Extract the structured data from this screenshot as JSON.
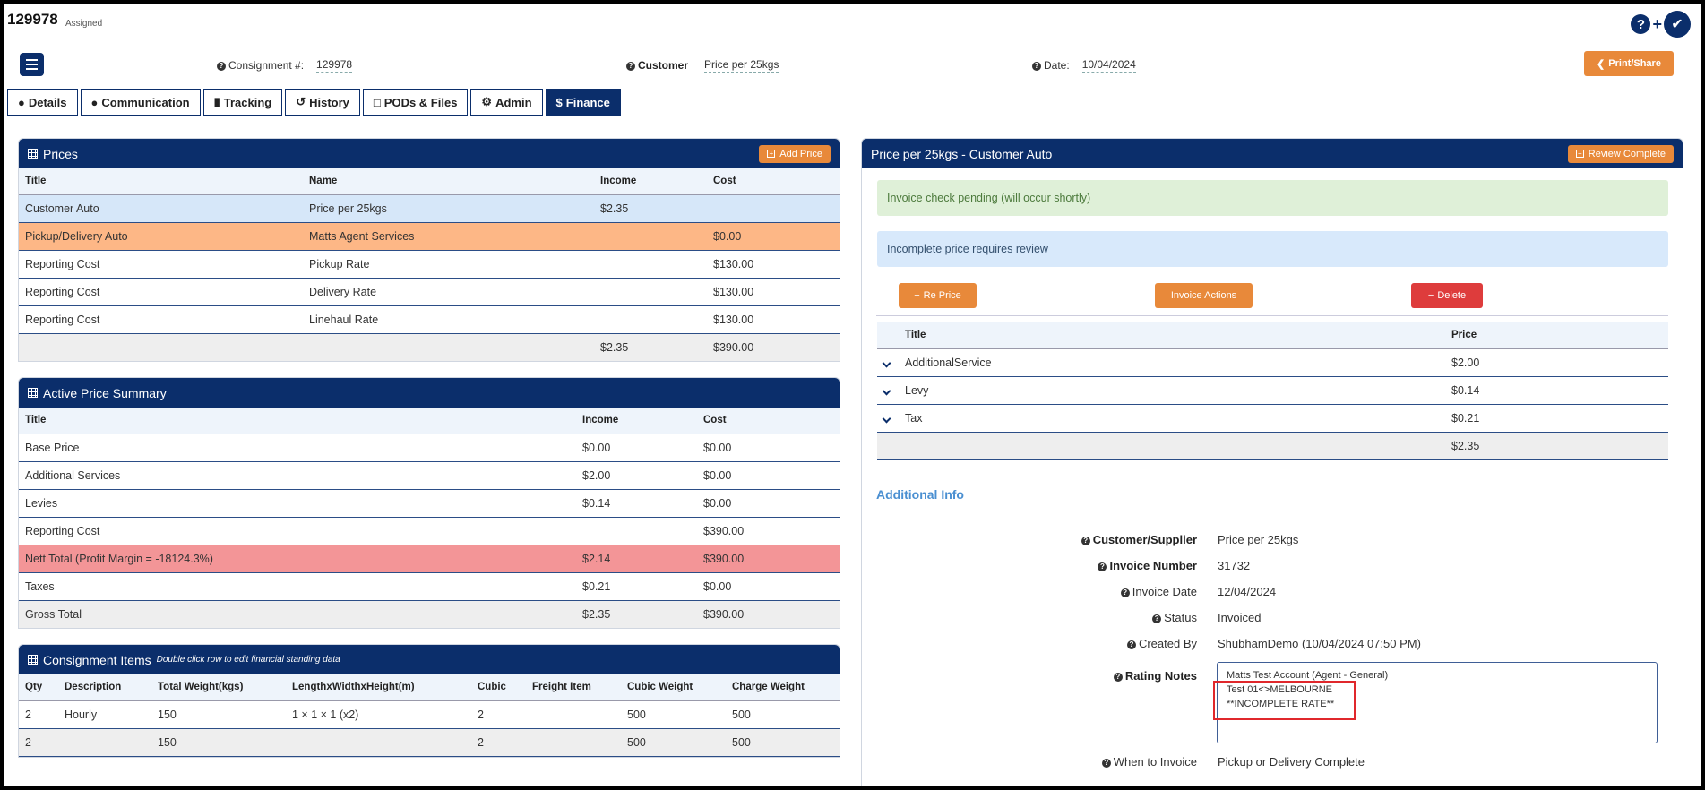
{
  "header": {
    "consignment_id": "129978",
    "status": "Assigned",
    "consignment_label": "Consignment #:",
    "consignment_value": "129978",
    "customer_label": "Customer",
    "customer_value": "Price per 25kgs",
    "date_label": "Date:",
    "date_value": "10/04/2024",
    "print_label": "Print/Share"
  },
  "tabs": [
    {
      "label": "Details",
      "icon": "user-icon"
    },
    {
      "label": "Communication",
      "icon": "comment-icon"
    },
    {
      "label": "Tracking",
      "icon": "truck-icon"
    },
    {
      "label": "History",
      "icon": "history-icon"
    },
    {
      "label": "PODs & Files",
      "icon": "file-icon"
    },
    {
      "label": "Admin",
      "icon": "gear-icon"
    },
    {
      "label": "Finance",
      "icon": "dollar-icon",
      "active": true
    }
  ],
  "prices": {
    "title": "Prices",
    "add_label": "Add Price",
    "columns": [
      "Title",
      "Name",
      "Income",
      "Cost"
    ],
    "rows": [
      [
        "Customer Auto",
        "Price per 25kgs",
        "$2.35",
        ""
      ],
      [
        "Pickup/Delivery Auto",
        "Matts Agent Services",
        "",
        "$0.00"
      ],
      [
        "Reporting Cost",
        "Pickup Rate",
        "",
        "$130.00"
      ],
      [
        "Reporting Cost",
        "Delivery Rate",
        "",
        "$130.00"
      ],
      [
        "Reporting Cost",
        "Linehaul Rate",
        "",
        "$130.00"
      ]
    ],
    "total": [
      "",
      "",
      "$2.35",
      "$390.00"
    ]
  },
  "summary": {
    "title": "Active Price Summary",
    "columns": [
      "Title",
      "Income",
      "Cost"
    ],
    "rows": [
      [
        "Base Price",
        "$0.00",
        "$0.00"
      ],
      [
        "Additional Services",
        "$2.00",
        "$0.00"
      ],
      [
        "Levies",
        "$0.14",
        "$0.00"
      ],
      [
        "Reporting Cost",
        "",
        "$390.00"
      ],
      [
        "Nett Total (Profit Margin = -18124.3%)",
        "$2.14",
        "$390.00"
      ],
      [
        "Taxes",
        "$0.21",
        "$0.00"
      ],
      [
        "Gross Total",
        "$2.35",
        "$390.00"
      ]
    ]
  },
  "items": {
    "title": "Consignment Items",
    "subtitle": "Double click row to edit financial standing data",
    "columns": [
      "Qty",
      "Description",
      "Total Weight(kgs)",
      "LengthxWidthxHeight(m)",
      "Cubic",
      "Freight Item",
      "Cubic Weight",
      "Charge Weight"
    ],
    "rows": [
      [
        "2",
        "Hourly",
        "150",
        "1 × 1 × 1 (x2)",
        "2",
        "",
        "500",
        "500"
      ],
      [
        "2",
        "",
        "150",
        "",
        "2",
        "",
        "500",
        "500"
      ]
    ]
  },
  "detail": {
    "title": "Price per 25kgs - Customer Auto",
    "review_label": "Review Complete",
    "alert_green": "Invoice check pending (will occur shortly)",
    "alert_blue": "Incomplete price requires review",
    "reprice_label": "Re Price",
    "invoice_actions_label": "Invoice Actions",
    "delete_label": "Delete",
    "columns": [
      "Title",
      "Price"
    ],
    "rows": [
      [
        "AdditionalService",
        "$2.00"
      ],
      [
        "Levy",
        "$0.14"
      ],
      [
        "Tax",
        "$0.21"
      ]
    ],
    "total": "$2.35",
    "additional_info_title": "Additional Info",
    "fields": [
      {
        "label": "Customer/Supplier",
        "value": "Price per 25kgs",
        "bold": true
      },
      {
        "label": "Invoice Number",
        "value": "31732",
        "bold": true
      },
      {
        "label": "Invoice Date",
        "value": "12/04/2024",
        "bold": false
      },
      {
        "label": "Status",
        "value": "Invoiced",
        "bold": false
      },
      {
        "label": "Created By",
        "value": "ShubhamDemo (10/04/2024 07:50 PM)",
        "bold": false
      }
    ],
    "rating_notes_label": "Rating Notes",
    "rating_notes_lines": [
      "Matts Test Account (Agent - General)",
      "Test 01<>MELBOURNE",
      "**INCOMPLETE RATE**"
    ],
    "when_to_invoice_label": "When to Invoice",
    "when_to_invoice_value": "Pickup or Delivery Complete"
  },
  "colors": {
    "navy": "#0b2e6b",
    "orange": "#e8893a",
    "red": "#de3c3c",
    "highlight_orange": "#fdb786",
    "highlight_red": "#f39597"
  }
}
